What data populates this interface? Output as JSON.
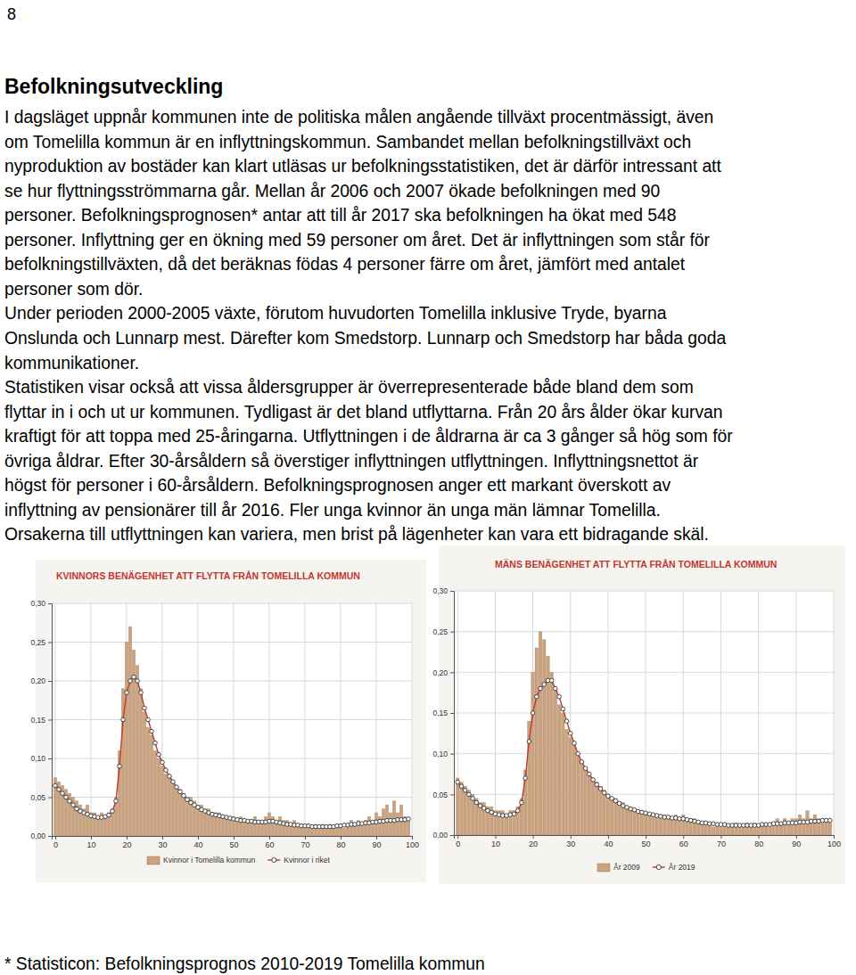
{
  "document": {
    "page_number": "8",
    "heading": "Befolkningsutveckling",
    "body_lines": [
      "I dagsläget uppnår kommunen inte de politiska målen angående tillväxt procentmässigt, även",
      "om Tomelilla kommun är en inflyttningskommun. Sambandet mellan befolkningstillväxt och",
      "nyproduktion av bostäder kan klart utläsas ur befolkningsstatistiken, det är därför intressant att",
      "se hur flyttningsströmmarna går. Mellan år 2006 och 2007 ökade befolkningen med 90",
      "personer. Befolkningsprognosen* antar att till år 2017 ska befolkningen ha ökat med 548",
      "personer. Inflyttning ger en ökning med 59 personer om året. Det är inflyttningen som står för",
      "befolkningstillväxten, då det beräknas födas 4 personer färre om året, jämfört med antalet",
      "personer som dör.",
      "Under perioden 2000-2005 växte, förutom huvudorten Tomelilla inklusive Tryde, byarna",
      "Onslunda och Lunnarp mest. Därefter kom Smedstorp. Lunnarp och Smedstorp har båda goda",
      "kommunikationer.",
      "Statistiken visar också att vissa åldersgrupper är överrepresenterade både bland dem som",
      "flyttar in i och ut ur kommunen. Tydligast är det bland utflyttarna. Från 20 års ålder ökar kurvan",
      "kraftigt för att toppa med 25-åringarna. Utflyttningen i de åldrarna är ca 3 gånger så hög som för",
      "övriga åldrar. Efter 30-årsåldern så överstiger inflyttningen utflyttningen. Inflyttningsnettot är",
      "högst för personer i 60-årsåldern. Befolkningsprognosen anger ett markant överskott av",
      "inflyttning av pensionärer till år 2016. Fler unga kvinnor än unga män lämnar Tomelilla.",
      "Orsakerna till utflyttningen kan variera, men brist på lägenheter kan vara ett bidragande skäl."
    ],
    "footnote": "* Statisticon: Befolkningsprognos 2010-2019 Tomelilla kommun"
  },
  "chart_data": [
    {
      "type": "bar",
      "title": "KVINNORS BENÄGENHET ATT FLYTTA FRÅN TOMELILLA KOMMUN",
      "x": [
        0,
        1,
        2,
        3,
        4,
        5,
        6,
        7,
        8,
        9,
        10,
        11,
        12,
        13,
        14,
        15,
        16,
        17,
        18,
        19,
        20,
        21,
        22,
        23,
        24,
        25,
        26,
        27,
        28,
        29,
        30,
        31,
        32,
        33,
        34,
        35,
        36,
        37,
        38,
        39,
        40,
        41,
        42,
        43,
        44,
        45,
        46,
        47,
        48,
        49,
        50,
        51,
        52,
        53,
        54,
        55,
        56,
        57,
        58,
        59,
        60,
        61,
        62,
        63,
        64,
        65,
        66,
        67,
        68,
        69,
        70,
        71,
        72,
        73,
        74,
        75,
        76,
        77,
        78,
        79,
        80,
        81,
        82,
        83,
        84,
        85,
        86,
        87,
        88,
        89,
        90,
        91,
        92,
        93,
        94,
        95,
        96,
        97,
        98,
        99
      ],
      "xlim": [
        -1,
        100
      ],
      "xticks": [
        0,
        10,
        20,
        30,
        40,
        50,
        60,
        70,
        80,
        90,
        100
      ],
      "ylim": [
        0,
        0.3
      ],
      "yticks": [
        {
          "value": 0,
          "label": "0,00"
        },
        {
          "value": 0.05,
          "label": "0,05"
        },
        {
          "value": 0.1,
          "label": "0,10"
        },
        {
          "value": 0.15,
          "label": "0,15"
        },
        {
          "value": 0.2,
          "label": "0,20"
        },
        {
          "value": 0.25,
          "label": "0,25"
        },
        {
          "value": 0.3,
          "label": "0,30"
        }
      ],
      "grid": true,
      "legend": "bottom",
      "series": [
        {
          "name": "Kvinnor i Tomelilla kommun",
          "type": "bar",
          "color": "#c9a27f",
          "values": [
            0.075,
            0.07,
            0.065,
            0.06,
            0.055,
            0.05,
            0.045,
            0.04,
            0.035,
            0.04,
            0.03,
            0.03,
            0.025,
            0.03,
            0.025,
            0.03,
            0.035,
            0.05,
            0.11,
            0.19,
            0.25,
            0.27,
            0.24,
            0.22,
            0.19,
            0.16,
            0.14,
            0.13,
            0.11,
            0.1,
            0.09,
            0.08,
            0.075,
            0.07,
            0.065,
            0.06,
            0.055,
            0.05,
            0.05,
            0.045,
            0.04,
            0.04,
            0.035,
            0.035,
            0.03,
            0.03,
            0.03,
            0.025,
            0.025,
            0.025,
            0.025,
            0.02,
            0.025,
            0.02,
            0.02,
            0.02,
            0.025,
            0.02,
            0.02,
            0.025,
            0.03,
            0.025,
            0.02,
            0.025,
            0.02,
            0.02,
            0.015,
            0.02,
            0.015,
            0.015,
            0.015,
            0.015,
            0.01,
            0.015,
            0.01,
            0.015,
            0.01,
            0.015,
            0.01,
            0.015,
            0.015,
            0.01,
            0.015,
            0.02,
            0.015,
            0.02,
            0.015,
            0.02,
            0.025,
            0.02,
            0.03,
            0.025,
            0.035,
            0.04,
            0.03,
            0.045,
            0.03,
            0.04,
            0.025,
            0.02
          ]
        },
        {
          "name": "Kvinnor i riket",
          "type": "line",
          "color": "#c0392b",
          "marker": "circle",
          "values": [
            0.065,
            0.06,
            0.055,
            0.05,
            0.045,
            0.04,
            0.035,
            0.032,
            0.03,
            0.028,
            0.026,
            0.025,
            0.024,
            0.024,
            0.025,
            0.027,
            0.032,
            0.045,
            0.09,
            0.15,
            0.185,
            0.2,
            0.205,
            0.2,
            0.185,
            0.165,
            0.15,
            0.135,
            0.12,
            0.105,
            0.095,
            0.085,
            0.077,
            0.07,
            0.063,
            0.057,
            0.052,
            0.047,
            0.043,
            0.04,
            0.037,
            0.034,
            0.032,
            0.03,
            0.028,
            0.027,
            0.026,
            0.025,
            0.024,
            0.023,
            0.022,
            0.021,
            0.02,
            0.02,
            0.019,
            0.019,
            0.018,
            0.018,
            0.018,
            0.018,
            0.019,
            0.019,
            0.018,
            0.017,
            0.016,
            0.015,
            0.015,
            0.014,
            0.014,
            0.013,
            0.013,
            0.013,
            0.012,
            0.012,
            0.012,
            0.012,
            0.012,
            0.012,
            0.012,
            0.013,
            0.013,
            0.014,
            0.014,
            0.015,
            0.015,
            0.016,
            0.016,
            0.017,
            0.017,
            0.018,
            0.018,
            0.019,
            0.019,
            0.02,
            0.02,
            0.02,
            0.021,
            0.021,
            0.021,
            0.022
          ]
        }
      ]
    },
    {
      "type": "bar",
      "title": "MÄNS BENÄGENHET ATT FLYTTA FRÅN TOMELILLA KOMMUN",
      "x": [
        0,
        1,
        2,
        3,
        4,
        5,
        6,
        7,
        8,
        9,
        10,
        11,
        12,
        13,
        14,
        15,
        16,
        17,
        18,
        19,
        20,
        21,
        22,
        23,
        24,
        25,
        26,
        27,
        28,
        29,
        30,
        31,
        32,
        33,
        34,
        35,
        36,
        37,
        38,
        39,
        40,
        41,
        42,
        43,
        44,
        45,
        46,
        47,
        48,
        49,
        50,
        51,
        52,
        53,
        54,
        55,
        56,
        57,
        58,
        59,
        60,
        61,
        62,
        63,
        64,
        65,
        66,
        67,
        68,
        69,
        70,
        71,
        72,
        73,
        74,
        75,
        76,
        77,
        78,
        79,
        80,
        81,
        82,
        83,
        84,
        85,
        86,
        87,
        88,
        89,
        90,
        91,
        92,
        93,
        94,
        95,
        96,
        97,
        98,
        99
      ],
      "xlim": [
        -1,
        100
      ],
      "xticks": [
        0,
        10,
        20,
        30,
        40,
        50,
        60,
        70,
        80,
        90,
        100
      ],
      "ylim": [
        0,
        0.3
      ],
      "yticks": [
        {
          "value": 0,
          "label": "0,00"
        },
        {
          "value": 0.05,
          "label": "0,05"
        },
        {
          "value": 0.1,
          "label": "0,10"
        },
        {
          "value": 0.15,
          "label": "0,15"
        },
        {
          "value": 0.2,
          "label": "0,20"
        },
        {
          "value": 0.25,
          "label": "0,25"
        },
        {
          "value": 0.3,
          "label": "0,30"
        }
      ],
      "grid": true,
      "legend": "bottom",
      "series": [
        {
          "name": "År 2009",
          "type": "bar",
          "color": "#c9a27f",
          "values": [
            0.07,
            0.065,
            0.06,
            0.055,
            0.05,
            0.045,
            0.04,
            0.04,
            0.035,
            0.035,
            0.03,
            0.03,
            0.03,
            0.025,
            0.03,
            0.03,
            0.035,
            0.045,
            0.08,
            0.14,
            0.2,
            0.23,
            0.25,
            0.24,
            0.22,
            0.2,
            0.18,
            0.16,
            0.15,
            0.13,
            0.12,
            0.11,
            0.1,
            0.09,
            0.08,
            0.075,
            0.07,
            0.065,
            0.06,
            0.055,
            0.05,
            0.045,
            0.045,
            0.04,
            0.04,
            0.035,
            0.035,
            0.03,
            0.03,
            0.03,
            0.025,
            0.025,
            0.025,
            0.025,
            0.02,
            0.025,
            0.02,
            0.02,
            0.025,
            0.02,
            0.025,
            0.02,
            0.02,
            0.02,
            0.015,
            0.015,
            0.015,
            0.015,
            0.01,
            0.015,
            0.01,
            0.015,
            0.01,
            0.01,
            0.015,
            0.01,
            0.01,
            0.015,
            0.01,
            0.015,
            0.01,
            0.015,
            0.015,
            0.01,
            0.015,
            0.02,
            0.015,
            0.02,
            0.015,
            0.02,
            0.02,
            0.025,
            0.02,
            0.03,
            0.02,
            0.025,
            0.02,
            0.015,
            0.02,
            0.015
          ]
        },
        {
          "name": "År 2019",
          "type": "line",
          "color": "#c0392b",
          "marker": "circle",
          "values": [
            0.065,
            0.06,
            0.055,
            0.05,
            0.045,
            0.04,
            0.036,
            0.033,
            0.03,
            0.028,
            0.026,
            0.025,
            0.024,
            0.024,
            0.025,
            0.026,
            0.03,
            0.04,
            0.07,
            0.115,
            0.15,
            0.17,
            0.18,
            0.185,
            0.19,
            0.19,
            0.18,
            0.17,
            0.155,
            0.14,
            0.125,
            0.113,
            0.1,
            0.09,
            0.082,
            0.075,
            0.068,
            0.062,
            0.057,
            0.052,
            0.048,
            0.045,
            0.042,
            0.039,
            0.036,
            0.034,
            0.032,
            0.031,
            0.029,
            0.028,
            0.027,
            0.026,
            0.025,
            0.024,
            0.023,
            0.022,
            0.022,
            0.021,
            0.021,
            0.02,
            0.02,
            0.019,
            0.018,
            0.017,
            0.016,
            0.015,
            0.015,
            0.014,
            0.014,
            0.013,
            0.013,
            0.013,
            0.012,
            0.012,
            0.012,
            0.012,
            0.012,
            0.012,
            0.012,
            0.012,
            0.012,
            0.013,
            0.013,
            0.013,
            0.014,
            0.014,
            0.014,
            0.015,
            0.015,
            0.015,
            0.015,
            0.016,
            0.016,
            0.016,
            0.017,
            0.017,
            0.017,
            0.018,
            0.018,
            0.018
          ]
        }
      ]
    }
  ]
}
